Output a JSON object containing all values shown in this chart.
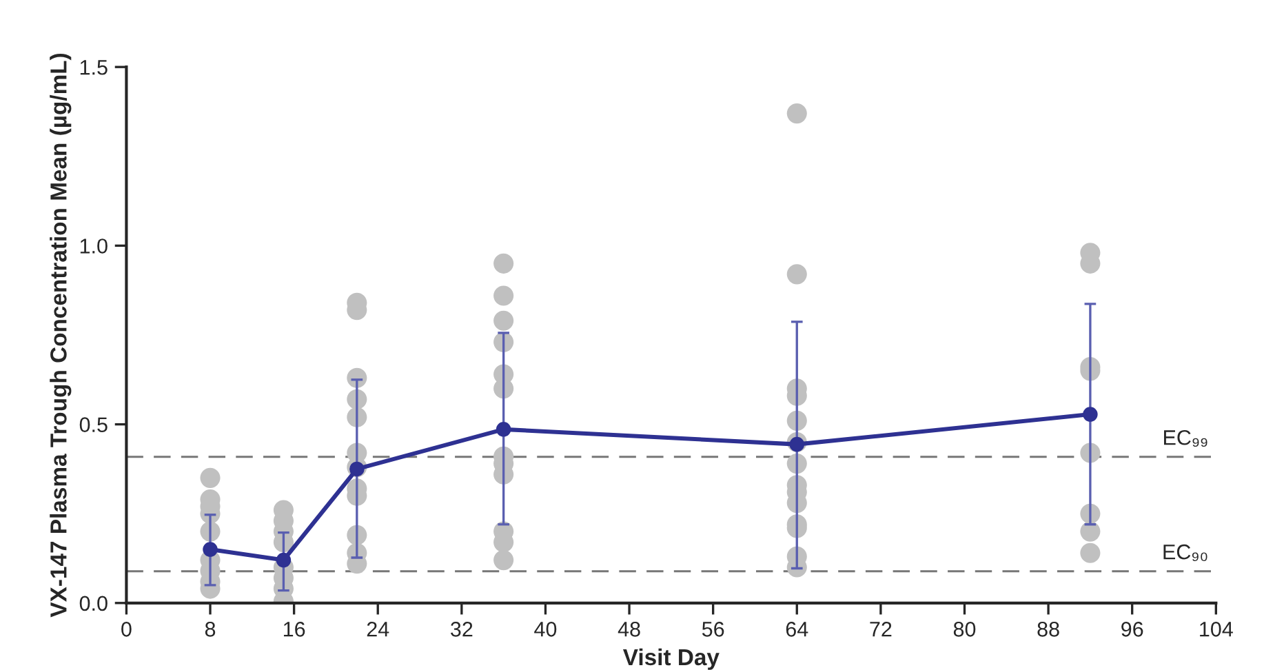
{
  "chart_data": {
    "type": "line",
    "xlabel": "Visit Day",
    "ylabel": "VX-147 Plasma Trough Concentration Mean (µg/mL)",
    "xlim": [
      0,
      104
    ],
    "xticks": [
      0,
      8,
      16,
      24,
      32,
      40,
      48,
      56,
      64,
      72,
      80,
      88,
      96,
      104
    ],
    "ylim": [
      0,
      1.5
    ],
    "yticks": [
      {
        "value": 0,
        "label": "0.0"
      },
      {
        "value": 0.5,
        "label": "0.5"
      },
      {
        "value": 1,
        "label": "1.0"
      },
      {
        "value": 1.5,
        "label": "1.5"
      }
    ],
    "grid": false,
    "legend": false,
    "series": [
      {
        "type": "scatter",
        "color": "#c0c0c0",
        "marker": "circle",
        "x": [
          8,
          8,
          8,
          8,
          8,
          8,
          8,
          8,
          8,
          15,
          15,
          15,
          15,
          15,
          15,
          15,
          15,
          22,
          22,
          22,
          22,
          22,
          22,
          22,
          22,
          22,
          22,
          22,
          22,
          36,
          36,
          36,
          36,
          36,
          36,
          36,
          36,
          36,
          36,
          36,
          36,
          64,
          64,
          64,
          64,
          64,
          64,
          64,
          64,
          64,
          64,
          64,
          64,
          64,
          64,
          92,
          92,
          92,
          92,
          92,
          92,
          92,
          92
        ],
        "values": [
          0.35,
          0.29,
          0.27,
          0.25,
          0.2,
          0.12,
          0.09,
          0.06,
          0.04,
          0.26,
          0.23,
          0.2,
          0.17,
          0.1,
          0.07,
          0.04,
          0.005,
          0.84,
          0.82,
          0.63,
          0.57,
          0.52,
          0.42,
          0.38,
          0.32,
          0.3,
          0.19,
          0.14,
          0.11,
          0.95,
          0.86,
          0.79,
          0.73,
          0.64,
          0.6,
          0.41,
          0.39,
          0.36,
          0.2,
          0.17,
          0.12,
          1.37,
          0.92,
          0.6,
          0.58,
          0.51,
          0.45,
          0.39,
          0.33,
          0.31,
          0.28,
          0.22,
          0.21,
          0.13,
          0.1,
          0.98,
          0.95,
          0.66,
          0.65,
          0.42,
          0.25,
          0.2,
          0.14
        ]
      },
      {
        "color": "#2e3192",
        "marker": "circle",
        "line_style": "solid",
        "x": [
          8,
          15,
          22,
          36,
          64,
          92
        ],
        "values": [
          0.15,
          0.12,
          0.375,
          0.486,
          0.444,
          0.528
        ],
        "errors": [
          [
            0.05,
            0.247
          ],
          [
            0.035,
            0.197
          ],
          [
            0.127,
            0.625
          ],
          [
            0.22,
            0.756
          ],
          [
            0.097,
            0.787
          ],
          [
            0.22,
            0.837
          ]
        ]
      }
    ],
    "ref_lines": [
      {
        "axis": "y",
        "value": 0.409,
        "label": "EC₉₉",
        "color": "#777777",
        "line_style": "dashed"
      },
      {
        "axis": "y",
        "value": 0.089,
        "label": "EC₉₀",
        "color": "#777777",
        "line_style": "dashed"
      }
    ]
  }
}
